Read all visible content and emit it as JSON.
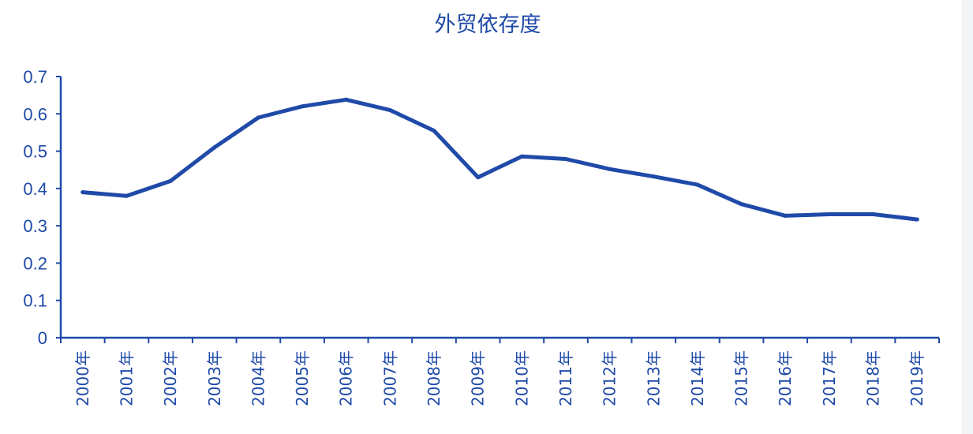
{
  "colors": {
    "line": "#1f4aa8",
    "axis": "#1f4aa8",
    "text": "#1f4aa8",
    "background": "#ffffff"
  },
  "chart_data": {
    "type": "line",
    "title": "外贸依存度",
    "xlabel": "",
    "ylabel": "",
    "categories": [
      "2000年",
      "2001年",
      "2002年",
      "2003年",
      "2004年",
      "2005年",
      "2006年",
      "2007年",
      "2008年",
      "2009年",
      "2010年",
      "2011年",
      "2012年",
      "2013年",
      "2014年",
      "2015年",
      "2016年",
      "2017年",
      "2018年",
      "2019年"
    ],
    "series": [
      {
        "values": [
          0.39,
          0.38,
          0.42,
          0.51,
          0.59,
          0.62,
          0.638,
          0.61,
          0.555,
          0.43,
          0.486,
          0.479,
          0.452,
          0.432,
          0.41,
          0.358,
          0.327,
          0.331,
          0.331,
          0.317
        ]
      }
    ],
    "ylim": [
      0,
      0.7
    ],
    "yticks": [
      "0",
      "0.1",
      "0.2",
      "0.3",
      "0.4",
      "0.5",
      "0.6",
      "0.7"
    ],
    "yticks_values": [
      0,
      0.1,
      0.2,
      0.3,
      0.4,
      0.5,
      0.6,
      0.7
    ],
    "grid": false,
    "legend": "none"
  }
}
